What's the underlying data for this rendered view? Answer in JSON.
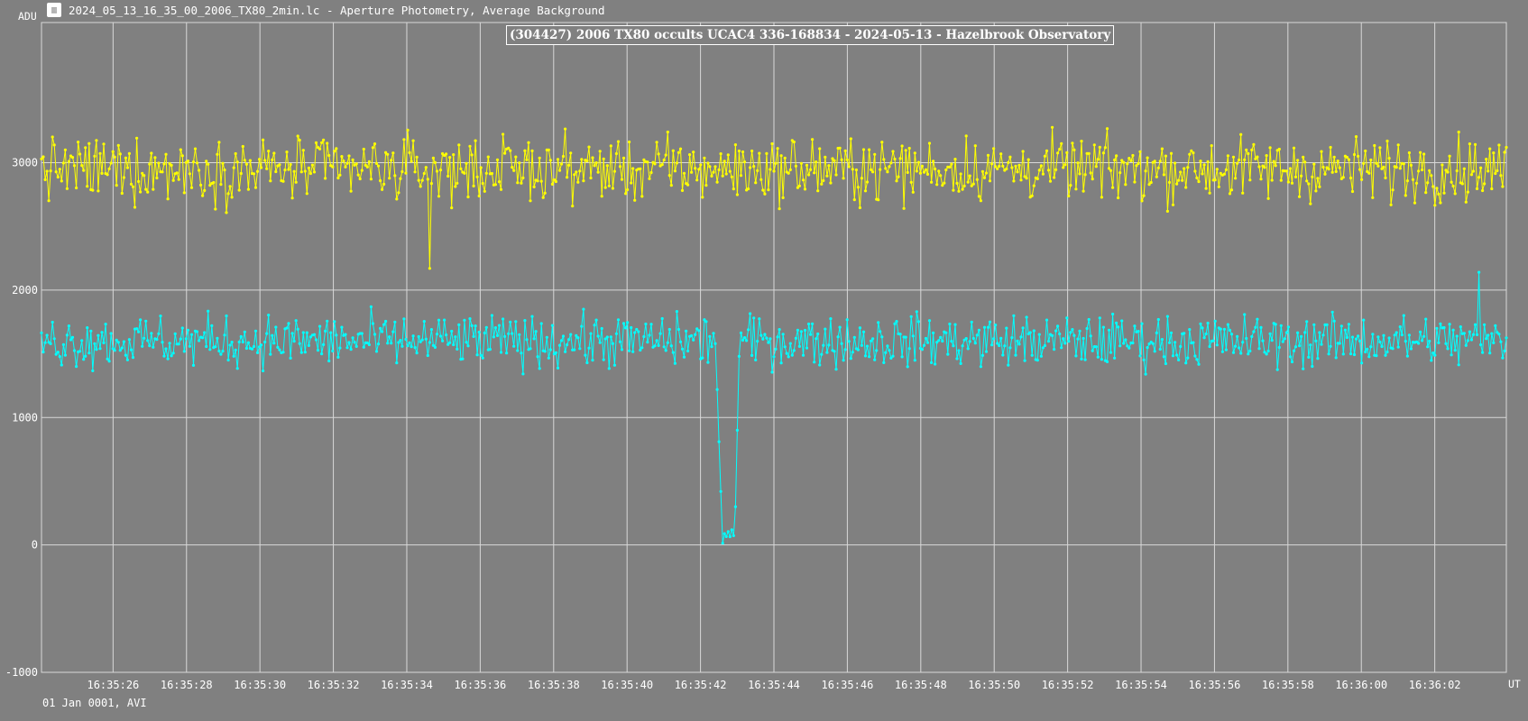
{
  "window": {
    "icon": "lightcurve-app-icon",
    "title": "2024_05_13_16_35_00_2006_TX80_2min.lc - Aperture Photometry, Average Background"
  },
  "footer": {
    "date_label": "01 Jan 0001, AVI"
  },
  "chart_data": {
    "type": "line",
    "title": "(304427) 2006 TX80 occults UCAC4 336-168834 - 2024-05-13 - Hazelbrook Observatory",
    "ylabel": "ADU",
    "xlabel": "UT",
    "ylim": [
      -1000,
      4100
    ],
    "y_ticks": [
      -1000,
      0,
      1000,
      2000,
      3000
    ],
    "x_ticks": [
      "16:35:26",
      "16:35:28",
      "16:35:30",
      "16:35:32",
      "16:35:34",
      "16:35:36",
      "16:35:38",
      "16:35:40",
      "16:35:42",
      "16:35:44",
      "16:35:46",
      "16:35:48",
      "16:35:50",
      "16:35:52",
      "16:35:54",
      "16:35:56",
      "16:35:58",
      "16:36:00",
      "16:36:02"
    ],
    "x_start": "16:35:24.05",
    "x_end": "16:36:03.95",
    "grid": true,
    "legend": "none",
    "series": [
      {
        "color": "#ffff00",
        "mean": 2950,
        "noise": 170,
        "spikes": [
          {
            "t": "16:35:34.60",
            "value": 2170
          }
        ]
      },
      {
        "color": "#00ffff",
        "mean": 1600,
        "noise": 140,
        "spikes": [
          {
            "t": "16:36:03.20",
            "value": 2140
          }
        ],
        "event": {
          "drop_start": "16:35:42.50",
          "drop_end": "16:35:42.95",
          "ingress": [
            {
              "t": "16:35:42.45",
              "value": 1220
            },
            {
              "t": "16:35:42.50",
              "value": 810
            },
            {
              "t": "16:35:42.55",
              "value": 420
            }
          ],
          "bottom_mean": 80,
          "bottom_noise": 60,
          "egress": [
            {
              "t": "16:35:42.95",
              "value": 300
            },
            {
              "t": "16:35:43.00",
              "value": 900
            },
            {
              "t": "16:35:43.05",
              "value": 1480
            }
          ]
        }
      }
    ]
  }
}
